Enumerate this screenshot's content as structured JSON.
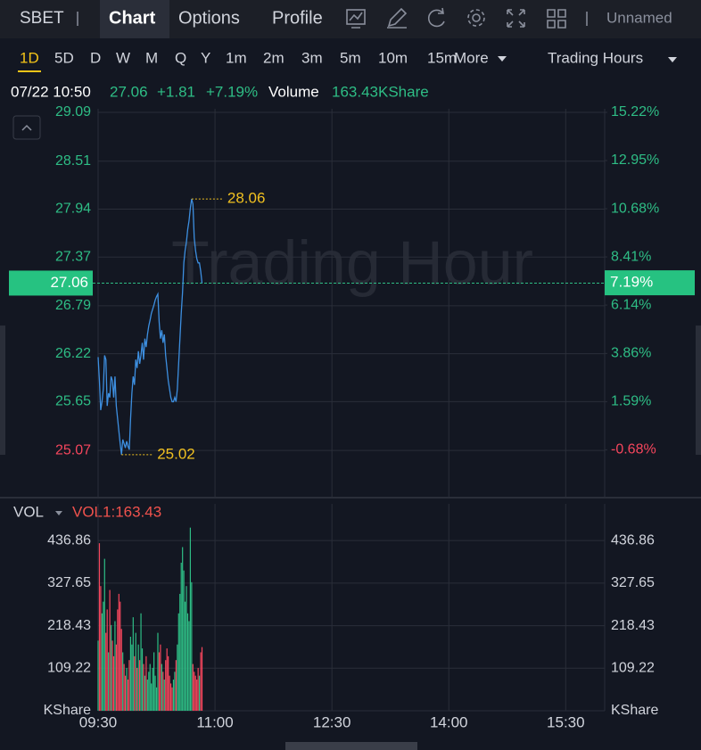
{
  "header": {
    "symbol": "SBET",
    "tabs": [
      "Chart",
      "Options",
      "Profile"
    ],
    "layout_name": "Unnamed"
  },
  "periods": [
    "1D",
    "5D",
    "D",
    "W",
    "M",
    "Q",
    "Y",
    "1m",
    "2m",
    "3m",
    "5m",
    "10m",
    "15m"
  ],
  "more": "More",
  "session": "Trading Hours",
  "quote": {
    "time": "07/22 10:50",
    "price": "27.06",
    "change": "+1.81",
    "change_pct": "+7.19%",
    "volume_label": "Volume",
    "volume": "163.43KShare"
  },
  "watermark": "Trading Hour",
  "chart_data": [
    {
      "type": "line",
      "color": "#3d8fe0",
      "x": [
        "09:30",
        "09:31",
        "09:32",
        "09:33",
        "09:34",
        "09:35",
        "09:36",
        "09:37",
        "09:38",
        "09:39",
        "09:40",
        "09:41",
        "09:42",
        "09:43",
        "09:44",
        "09:45",
        "09:46",
        "09:47",
        "09:48",
        "09:49",
        "09:50",
        "09:51",
        "09:52",
        "09:53",
        "09:54",
        "09:55",
        "09:56",
        "09:57",
        "09:58",
        "09:59",
        "10:00",
        "10:01",
        "10:02",
        "10:03",
        "10:04",
        "10:05",
        "10:06",
        "10:07",
        "10:08",
        "10:09",
        "10:10",
        "10:11",
        "10:12",
        "10:13",
        "10:14",
        "10:15",
        "10:16",
        "10:17",
        "10:18",
        "10:19",
        "10:20",
        "10:21",
        "10:22",
        "10:23",
        "10:24",
        "10:25",
        "10:26",
        "10:27",
        "10:28",
        "10:29",
        "10:30",
        "10:31",
        "10:32",
        "10:33",
        "10:34",
        "10:35",
        "10:36",
        "10:37",
        "10:38",
        "10:39",
        "10:40",
        "10:41",
        "10:42",
        "10:43",
        "10:44",
        "10:45",
        "10:46",
        "10:47",
        "10:48",
        "10:49",
        "10:50"
      ],
      "values": [
        26.18,
        25.9,
        25.55,
        25.65,
        25.8,
        26.2,
        26.15,
        25.6,
        25.75,
        25.7,
        25.95,
        25.9,
        25.7,
        25.95,
        25.6,
        25.45,
        25.3,
        25.15,
        25.02,
        25.2,
        25.15,
        25.1,
        25.18,
        25.12,
        25.08,
        25.45,
        25.75,
        25.95,
        25.85,
        26.15,
        26.05,
        26.25,
        26.1,
        26.2,
        26.35,
        26.15,
        26.4,
        26.3,
        26.45,
        26.55,
        26.62,
        26.7,
        26.75,
        26.8,
        26.86,
        26.9,
        26.93,
        26.6,
        26.4,
        26.5,
        26.35,
        26.45,
        26.2,
        26.05,
        25.9,
        25.8,
        25.7,
        25.65,
        25.65,
        25.7,
        25.65,
        25.8,
        26.1,
        26.4,
        26.7,
        26.95,
        27.3,
        27.45,
        27.55,
        27.7,
        27.8,
        27.95,
        28.06,
        28.0,
        27.6,
        27.45,
        27.35,
        27.3,
        27.3,
        27.2,
        27.06
      ],
      "xlim": [
        "09:30",
        "16:00"
      ],
      "ylim": [
        24.52,
        29.09
      ],
      "yticks": [
        29.09,
        28.51,
        27.94,
        27.37,
        26.79,
        26.22,
        25.65,
        25.07
      ],
      "y2lim": [
        -2.89,
        15.22
      ],
      "y2ticks": [
        {
          "value": 15.22,
          "label": "15.22%"
        },
        {
          "value": 12.95,
          "label": "12.95%"
        },
        {
          "value": 10.68,
          "label": "10.68%"
        },
        {
          "value": 8.41,
          "label": "8.41%"
        },
        {
          "value": 6.14,
          "label": "6.14%"
        },
        {
          "value": 3.86,
          "label": "3.86%"
        },
        {
          "value": 1.59,
          "label": "1.59%"
        },
        {
          "value": -0.68,
          "label": "-0.68%"
        }
      ],
      "current_value": 27.06,
      "current_pct": {
        "value": 7.19,
        "label": "7.19%"
      },
      "annotations": [
        {
          "x": "10:42",
          "value": 28.06
        },
        {
          "x": "09:48",
          "value": 25.02
        }
      ],
      "up_color": "#2ebd85",
      "down_color": "#f6465d",
      "grid": true
    },
    {
      "type": "bar",
      "title": "VOL",
      "indicator_label": "VOL1:163.43",
      "up_color": "#2ebd85",
      "down_color": "#f6465d",
      "x": [
        "09:30",
        "09:31",
        "09:32",
        "09:33",
        "09:34",
        "09:35",
        "09:36",
        "09:37",
        "09:38",
        "09:39",
        "09:40",
        "09:41",
        "09:42",
        "09:43",
        "09:44",
        "09:45",
        "09:46",
        "09:47",
        "09:48",
        "09:49",
        "09:50",
        "09:51",
        "09:52",
        "09:53",
        "09:54",
        "09:55",
        "09:56",
        "09:57",
        "09:58",
        "09:59",
        "10:00",
        "10:01",
        "10:02",
        "10:03",
        "10:04",
        "10:05",
        "10:06",
        "10:07",
        "10:08",
        "10:09",
        "10:10",
        "10:11",
        "10:12",
        "10:13",
        "10:14",
        "10:15",
        "10:16",
        "10:17",
        "10:18",
        "10:19",
        "10:20",
        "10:21",
        "10:22",
        "10:23",
        "10:24",
        "10:25",
        "10:26",
        "10:27",
        "10:28",
        "10:29",
        "10:30",
        "10:31",
        "10:32",
        "10:33",
        "10:34",
        "10:35",
        "10:36",
        "10:37",
        "10:38",
        "10:39",
        "10:40",
        "10:41",
        "10:42",
        "10:43",
        "10:44",
        "10:45",
        "10:46",
        "10:47",
        "10:48",
        "10:49",
        "10:50"
      ],
      "values": [
        180,
        430,
        320,
        250,
        280,
        390,
        200,
        260,
        150,
        310,
        220,
        180,
        140,
        230,
        170,
        260,
        300,
        280,
        210,
        150,
        120,
        90,
        110,
        80,
        130,
        190,
        170,
        240,
        140,
        200,
        110,
        170,
        130,
        250,
        160,
        120,
        90,
        140,
        80,
        100,
        120,
        70,
        110,
        150,
        90,
        60,
        200,
        150,
        170,
        120,
        100,
        80,
        130,
        160,
        140,
        90,
        70,
        60,
        80,
        100,
        130,
        170,
        250,
        300,
        380,
        420,
        360,
        280,
        320,
        250,
        230,
        470,
        330,
        120,
        100,
        90,
        80,
        110,
        90,
        150,
        163.43
      ],
      "xlim": [
        "09:30",
        "16:00"
      ],
      "xticks": [
        "09:30",
        "11:00",
        "12:30",
        "14:00",
        "15:30"
      ],
      "ylim": [
        0,
        531
      ],
      "yticks": [
        {
          "value": 0,
          "label": "KShare"
        },
        109.22,
        218.43,
        327.65,
        436.86
      ],
      "grid": true
    }
  ]
}
